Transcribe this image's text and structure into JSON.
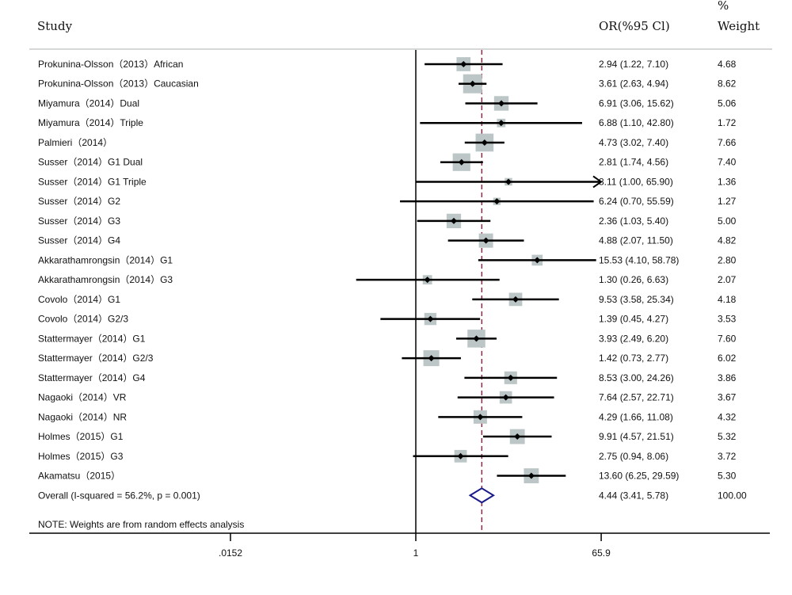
{
  "chart_data": {
    "type": "forest",
    "scale": "log",
    "headers": {
      "study": "Study",
      "or_ci": "OR(%95 Cl)",
      "weight_line1": "%",
      "weight_line2": "Weight"
    },
    "studies": [
      {
        "label": "Prokunina-Olsson（2013）African",
        "or": 2.94,
        "lower": 1.22,
        "upper": 7.1,
        "or_text": "2.94 (1.22, 7.10)",
        "weight": "4.68"
      },
      {
        "label": "Prokunina-Olsson（2013）Caucasian",
        "or": 3.61,
        "lower": 2.63,
        "upper": 4.94,
        "or_text": "3.61 (2.63, 4.94)",
        "weight": "8.62"
      },
      {
        "label": "Miyamura（2014）Dual",
        "or": 6.91,
        "lower": 3.06,
        "upper": 15.62,
        "or_text": "6.91 (3.06, 15.62)",
        "weight": "5.06"
      },
      {
        "label": "Miyamura（2014）Triple",
        "or": 6.88,
        "lower": 1.1,
        "upper": 42.8,
        "or_text": "6.88 (1.10, 42.80)",
        "weight": "1.72"
      },
      {
        "label": "Palmieri（2014）",
        "or": 4.73,
        "lower": 3.02,
        "upper": 7.4,
        "or_text": "4.73 (3.02, 7.40)",
        "weight": "7.66"
      },
      {
        "label": "Susser（2014）G1 Dual",
        "or": 2.81,
        "lower": 1.74,
        "upper": 4.56,
        "or_text": "2.81 (1.74, 4.56)",
        "weight": "7.40"
      },
      {
        "label": "Susser（2014）G1 Triple",
        "or": 8.11,
        "lower": 1.0,
        "upper": 65.9,
        "or_text": "8.11 (1.00, 65.90)",
        "weight": "1.36",
        "arrow_right": true
      },
      {
        "label": "Susser（2014）G2",
        "or": 6.24,
        "lower": 0.7,
        "upper": 55.59,
        "or_text": "6.24 (0.70, 55.59)",
        "weight": "1.27"
      },
      {
        "label": "Susser（2014）G3",
        "or": 2.36,
        "lower": 1.03,
        "upper": 5.4,
        "or_text": "2.36 (1.03, 5.40)",
        "weight": "5.00"
      },
      {
        "label": "Susser（2014）G4",
        "or": 4.88,
        "lower": 2.07,
        "upper": 11.5,
        "or_text": "4.88 (2.07, 11.50)",
        "weight": "4.82"
      },
      {
        "label": "Akkarathamrongsin（2014）G1",
        "or": 15.53,
        "lower": 4.1,
        "upper": 58.78,
        "or_text": "15.53 (4.10, 58.78)",
        "weight": "2.80"
      },
      {
        "label": "Akkarathamrongsin（2014）G3",
        "or": 1.3,
        "lower": 0.26,
        "upper": 6.63,
        "or_text": "1.30 (0.26, 6.63)",
        "weight": "2.07"
      },
      {
        "label": "Covolo（2014）G1",
        "or": 9.53,
        "lower": 3.58,
        "upper": 25.34,
        "or_text": "9.53 (3.58, 25.34)",
        "weight": "4.18"
      },
      {
        "label": "Covolo（2014）G2/3",
        "or": 1.39,
        "lower": 0.45,
        "upper": 4.27,
        "or_text": "1.39 (0.45, 4.27)",
        "weight": "3.53"
      },
      {
        "label": "Stattermayer（2014）G1",
        "or": 3.93,
        "lower": 2.49,
        "upper": 6.2,
        "or_text": "3.93 (2.49, 6.20)",
        "weight": "7.60"
      },
      {
        "label": "Stattermayer（2014）G2/3",
        "or": 1.42,
        "lower": 0.73,
        "upper": 2.77,
        "or_text": "1.42 (0.73, 2.77)",
        "weight": "6.02"
      },
      {
        "label": "Stattermayer（2014）G4",
        "or": 8.53,
        "lower": 3.0,
        "upper": 24.26,
        "or_text": "8.53 (3.00, 24.26)",
        "weight": "3.86"
      },
      {
        "label": "Nagaoki（2014）VR",
        "or": 7.64,
        "lower": 2.57,
        "upper": 22.71,
        "or_text": "7.64 (2.57, 22.71)",
        "weight": "3.67"
      },
      {
        "label": "Nagaoki（2014）NR",
        "or": 4.29,
        "lower": 1.66,
        "upper": 11.08,
        "or_text": "4.29 (1.66, 11.08)",
        "weight": "4.32"
      },
      {
        "label": "Holmes（2015）G1",
        "or": 9.91,
        "lower": 4.57,
        "upper": 21.51,
        "or_text": "9.91 (4.57, 21.51)",
        "weight": "5.32"
      },
      {
        "label": "Holmes（2015）G3",
        "or": 2.75,
        "lower": 0.94,
        "upper": 8.06,
        "or_text": "2.75 (0.94, 8.06)",
        "weight": "3.72"
      },
      {
        "label": "Akamatsu（2015）",
        "or": 13.6,
        "lower": 6.25,
        "upper": 29.59,
        "or_text": "13.60 (6.25, 29.59)",
        "weight": "5.30"
      }
    ],
    "overall": {
      "label": "Overall  (I-squared = 56.2%, p = 0.001)",
      "or": 4.44,
      "lower": 3.41,
      "upper": 5.78,
      "or_text": "4.44 (3.41, 5.78)",
      "weight": "100.00"
    },
    "note": "NOTE: Weights are from random effects analysis",
    "x_ticks": [
      {
        "value": 0.0152,
        "label": ".0152"
      },
      {
        "value": 1,
        "label": "1"
      },
      {
        "value": 65.9,
        "label": "65.9"
      }
    ],
    "xlim": [
      0.0152,
      65.9
    ],
    "null_line": 1,
    "colors": {
      "box": "#bcc6c6",
      "ci": "#000000",
      "overall_line": "#a0183a",
      "diamond": "#1a1a8a",
      "header_rule": "#c8cccc"
    }
  }
}
